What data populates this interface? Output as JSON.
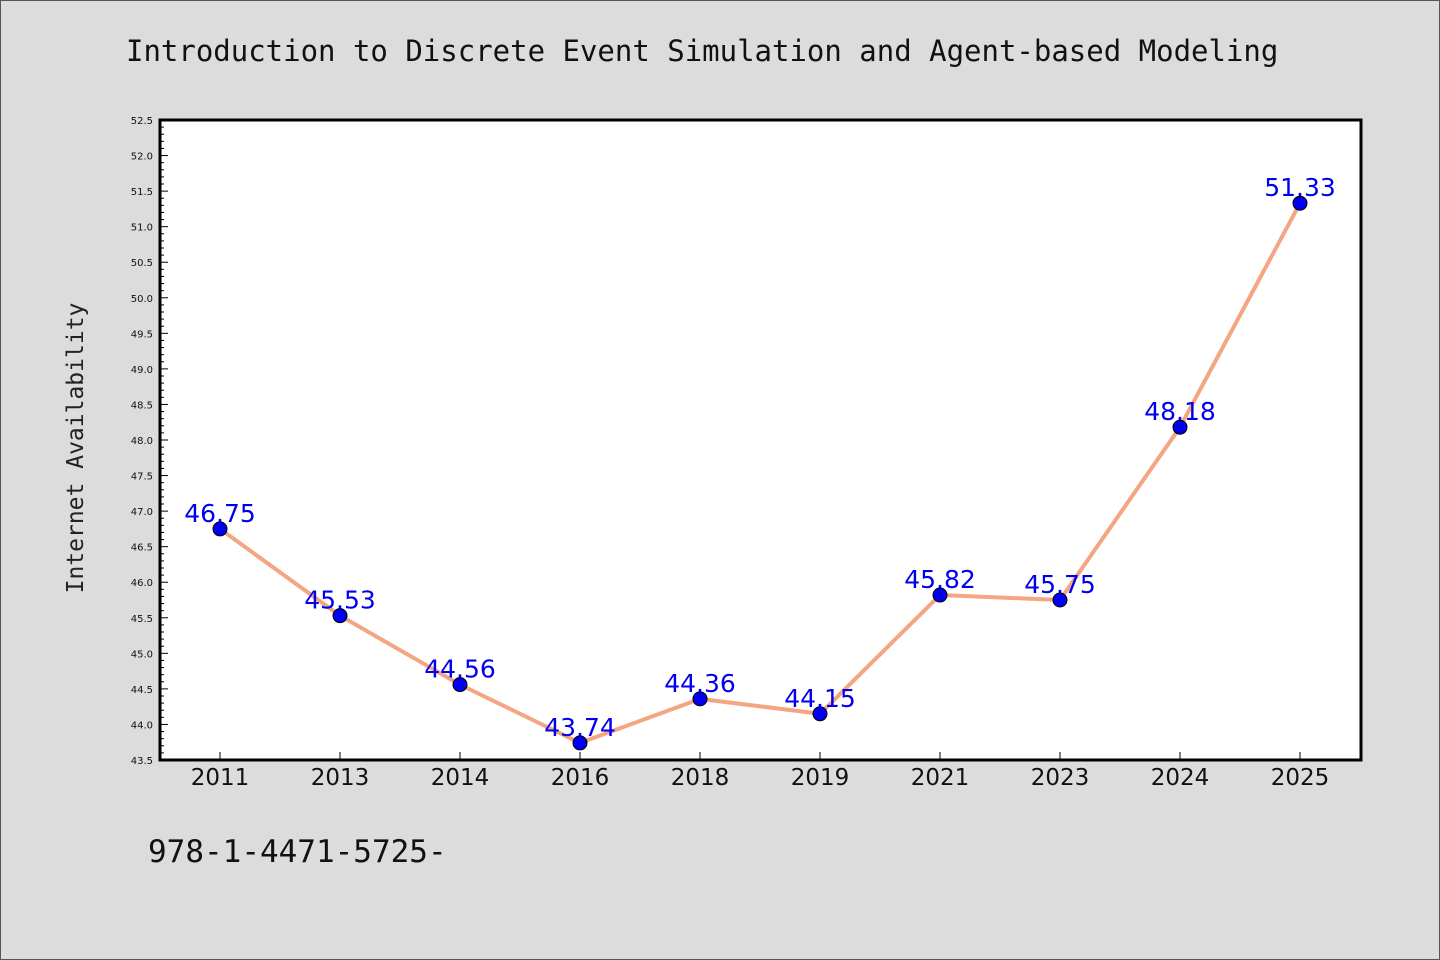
{
  "chart_data": {
    "type": "line",
    "title": "Introduction to Discrete Event Simulation and Agent-based Modeling",
    "xlabel": "",
    "ylabel": "Internet Availability",
    "categories": [
      "2011",
      "2013",
      "2014",
      "2016",
      "2018",
      "2019",
      "2021",
      "2023",
      "2024",
      "2025"
    ],
    "series": [
      {
        "values": [
          46.75,
          45.53,
          44.56,
          43.74,
          44.36,
          44.15,
          45.82,
          45.75,
          48.18,
          51.33
        ],
        "labels": [
          "46.75",
          "45.53",
          "44.56",
          "43.74",
          "44.36",
          "44.15",
          "45.82",
          "45.75",
          "48.18",
          "51.33"
        ]
      }
    ],
    "ylim": [
      43.5,
      52.5
    ],
    "yticks": [
      "43.5",
      "44.0",
      "44.5",
      "45.0",
      "45.5",
      "46.0",
      "46.5",
      "47.0",
      "47.5",
      "48.0",
      "48.5",
      "49.0",
      "49.5",
      "50.0",
      "50.5",
      "51.0",
      "51.5",
      "52.0",
      "52.5"
    ],
    "grid": false,
    "legend": "none",
    "colors": {
      "line": "#f4a582",
      "marker": "#0000ee",
      "data_label": "#0000ee",
      "plot_background": "#ffffff",
      "page_background": "#dcdcdc"
    }
  },
  "footer": {
    "code": "978-1-4471-5725-"
  }
}
